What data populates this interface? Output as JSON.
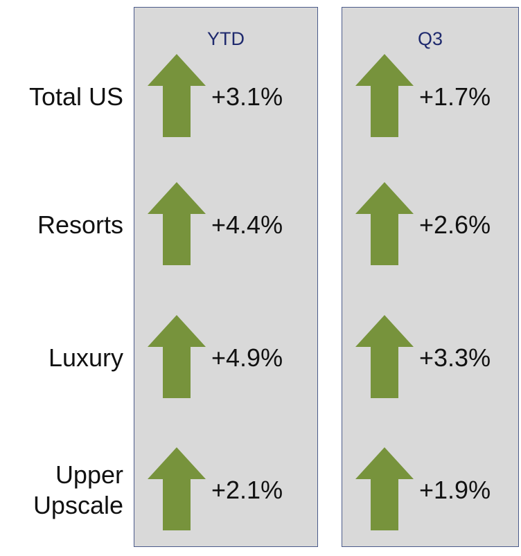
{
  "table": {
    "columns": [
      "YTD",
      "Q3"
    ],
    "rows": [
      {
        "label": "Total US",
        "values": [
          "+3.1%",
          "+1.7%"
        ]
      },
      {
        "label": "Resorts",
        "values": [
          "+4.4%",
          "+2.6%"
        ]
      },
      {
        "label": "Luxury",
        "values": [
          "+4.9%",
          "+3.3%"
        ]
      },
      {
        "label": "Upper Upscale",
        "values": [
          "+2.1%",
          "+1.9%"
        ]
      }
    ]
  }
}
